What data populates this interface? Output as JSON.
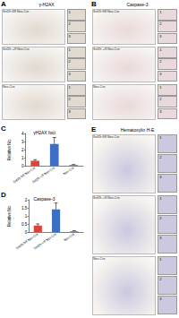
{
  "panels": [
    {
      "label": "A",
      "title": "γ-H2AX",
      "rows": [
        "Snf2h fl/fl Nes-Cre",
        "Snf2h +/fl Nes-Cre",
        "Nes-Cre"
      ],
      "insets": [
        "1",
        "2",
        "3"
      ],
      "color": "#e2d9cf"
    },
    {
      "label": "B",
      "title": "Caspase-3",
      "rows": [
        "Snf2h fl/fl Nes-Cre",
        "Snf2h +/fl Nes-Cre",
        "Nes-Cre"
      ],
      "insets": [
        "1",
        "2",
        "3"
      ],
      "color": "#ead9da"
    },
    {
      "label": "E",
      "title": "Hematoxylin H-E",
      "rows": [
        "Snf2h fl/fl Nes-Cre",
        "Snf2h +/fl Nes-Cre",
        "Nes-Cre"
      ],
      "insets": [
        "1",
        "2",
        "3"
      ],
      "color": "#cbc8e0"
    }
  ],
  "chart_data": [
    {
      "label": "C",
      "type": "bar",
      "title": "γH2AX foci",
      "y_label": "Relative No.",
      "categories": [
        "Snf2h fl/fl Nes-Cre",
        "Snf2h +/fl Nes-Cre",
        "Nes-Cre"
      ],
      "values": [
        0.6,
        2.7,
        0.1
      ],
      "errors": [
        0.15,
        0.8,
        0.05
      ],
      "colors": [
        "#d9453a",
        "#3b6fc4",
        "#888888"
      ],
      "ylim": [
        0,
        4
      ],
      "yticks": [
        0,
        1,
        2,
        3,
        4
      ]
    },
    {
      "label": "D",
      "type": "bar",
      "title": "Caspase-3",
      "y_label": "Relative No.",
      "categories": [
        "Snf2h fl/fl Nes-Cre",
        "Snf2h +/fl Nes-Cre",
        "Nes-Cre"
      ],
      "values": [
        0.4,
        1.4,
        0.05
      ],
      "errors": [
        0.1,
        0.4,
        0.03
      ],
      "colors": [
        "#d9453a",
        "#3b6fc4",
        "#888888"
      ],
      "ylim": [
        0,
        2
      ],
      "yticks": [
        0,
        0.5,
        1,
        1.5,
        2
      ]
    }
  ]
}
